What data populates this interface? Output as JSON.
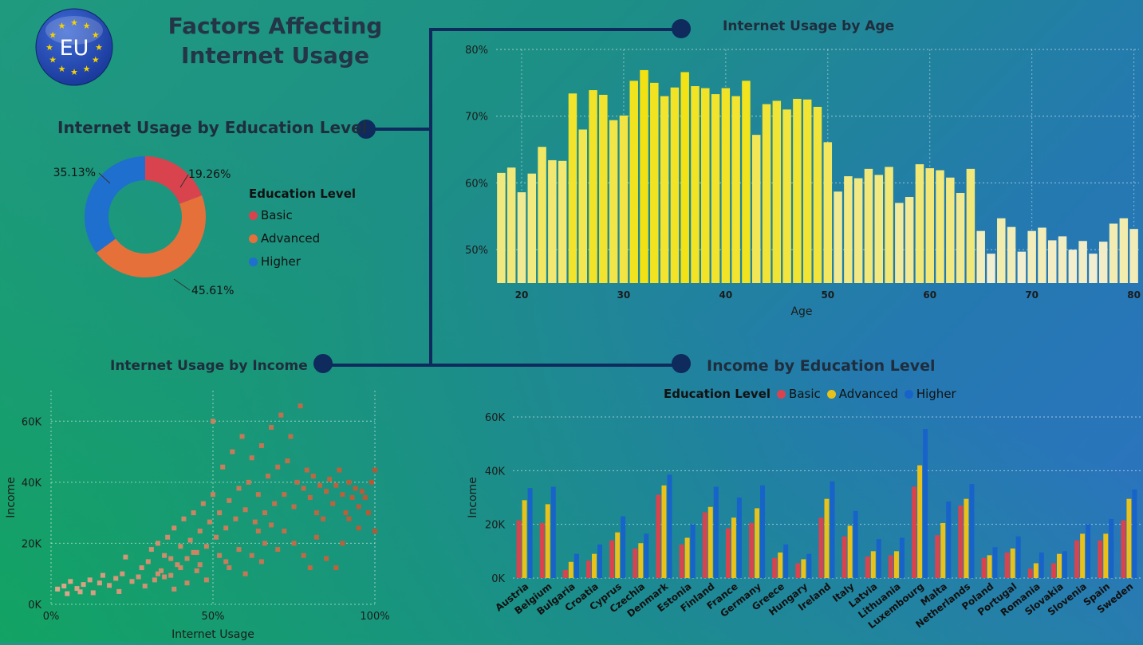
{
  "dashboard": {
    "title_line1": "Factors Affecting",
    "title_line2": "Internet Usage",
    "logo_text": "EU"
  },
  "colors": {
    "basic": "#d9434e",
    "advanced": "#e6703a",
    "higher": "#1f6fce",
    "bar_advanced": "#e8c11a",
    "bar_higher": "#1763c9",
    "connector": "#0f2a5c"
  },
  "chart_data": [
    {
      "id": "donut",
      "type": "pie",
      "title": "Internet Usage by Education Level",
      "legend_title": "Education Level",
      "legend_position": "right",
      "categories": [
        "Basic",
        "Advanced",
        "Higher"
      ],
      "values": [
        19.26,
        45.61,
        35.13
      ],
      "labels": [
        "19.26%",
        "45.61%",
        "35.13%"
      ]
    },
    {
      "id": "age",
      "type": "bar",
      "title": "Internet Usage by Age",
      "xlabel": "Age",
      "ylabel": "",
      "x": [
        18,
        19,
        20,
        21,
        22,
        23,
        24,
        25,
        26,
        27,
        28,
        29,
        30,
        31,
        32,
        33,
        34,
        35,
        36,
        37,
        38,
        39,
        40,
        41,
        42,
        43,
        44,
        45,
        46,
        47,
        48,
        49,
        50,
        51,
        52,
        53,
        54,
        55,
        56,
        57,
        58,
        59,
        60,
        61,
        62,
        63,
        64,
        65,
        66,
        67,
        68,
        69,
        70,
        71,
        72,
        73,
        74,
        75,
        76,
        77,
        78,
        79,
        80
      ],
      "values": [
        61.5,
        62.3,
        58.6,
        61.4,
        65.4,
        63.4,
        63.3,
        73.4,
        68.0,
        73.9,
        73.2,
        69.4,
        70.1,
        75.3,
        76.9,
        75.0,
        73.0,
        74.3,
        76.6,
        74.5,
        74.2,
        73.3,
        74.2,
        73.0,
        75.3,
        67.2,
        71.8,
        72.3,
        71.0,
        72.6,
        72.5,
        71.4,
        66.1,
        58.7,
        61.0,
        60.7,
        62.1,
        61.2,
        62.4,
        57.0,
        57.9,
        62.8,
        62.2,
        61.9,
        60.8,
        58.5,
        62.1,
        52.8,
        49.4,
        54.7,
        53.4,
        49.7,
        52.8,
        53.3,
        51.4,
        52.0,
        50.0,
        51.3,
        49.4,
        51.2,
        53.9,
        54.7,
        53.1
      ],
      "ylim": [
        45,
        80
      ],
      "yticks": [
        "50%",
        "60%",
        "70%",
        "80%"
      ],
      "xticks": [
        "20",
        "30",
        "40",
        "50",
        "60",
        "70",
        "80"
      ],
      "grid": true
    },
    {
      "id": "scatter",
      "type": "scatter",
      "title": "Internet Usage by Income",
      "xlabel": "Internet Usage",
      "ylabel": "Income",
      "xlim": [
        0,
        100
      ],
      "ylim": [
        0,
        70000
      ],
      "xticks": [
        "0%",
        "50%",
        "100%"
      ],
      "yticks": [
        "0K",
        "20K",
        "40K",
        "60K"
      ],
      "grid": true,
      "points": [
        [
          2,
          5000
        ],
        [
          4,
          6000
        ],
        [
          5,
          3500
        ],
        [
          6,
          7500
        ],
        [
          8,
          5200
        ],
        [
          9,
          4100
        ],
        [
          10,
          6500
        ],
        [
          12,
          8000
        ],
        [
          13,
          3800
        ],
        [
          15,
          7000
        ],
        [
          16,
          9500
        ],
        [
          18,
          6200
        ],
        [
          20,
          8500
        ],
        [
          21,
          4200
        ],
        [
          22,
          10000
        ],
        [
          23,
          15500
        ],
        [
          25,
          7500
        ],
        [
          27,
          9000
        ],
        [
          28,
          12000
        ],
        [
          29,
          6000
        ],
        [
          30,
          14000
        ],
        [
          31,
          18000
        ],
        [
          32,
          8000
        ],
        [
          33,
          20000
        ],
        [
          34,
          11000
        ],
        [
          35,
          16000
        ],
        [
          36,
          22000
        ],
        [
          37,
          9500
        ],
        [
          38,
          25000
        ],
        [
          39,
          13000
        ],
        [
          40,
          19000
        ],
        [
          41,
          28000
        ],
        [
          42,
          15000
        ],
        [
          43,
          21000
        ],
        [
          44,
          30000
        ],
        [
          45,
          17000
        ],
        [
          46,
          24000
        ],
        [
          47,
          33000
        ],
        [
          48,
          19000
        ],
        [
          49,
          27000
        ],
        [
          50,
          36000
        ],
        [
          50,
          60000
        ],
        [
          51,
          22000
        ],
        [
          52,
          30000
        ],
        [
          53,
          45000
        ],
        [
          54,
          25000
        ],
        [
          55,
          34000
        ],
        [
          56,
          50000
        ],
        [
          57,
          28000
        ],
        [
          58,
          38000
        ],
        [
          59,
          55000
        ],
        [
          60,
          31000
        ],
        [
          61,
          40000
        ],
        [
          62,
          48000
        ],
        [
          63,
          27000
        ],
        [
          64,
          36000
        ],
        [
          65,
          52000
        ],
        [
          66,
          30000
        ],
        [
          67,
          42000
        ],
        [
          68,
          58000
        ],
        [
          69,
          33000
        ],
        [
          70,
          45000
        ],
        [
          71,
          62000
        ],
        [
          72,
          36000
        ],
        [
          73,
          47000
        ],
        [
          74,
          55000
        ],
        [
          75,
          32000
        ],
        [
          76,
          40000
        ],
        [
          77,
          65000
        ],
        [
          78,
          38000
        ],
        [
          79,
          44000
        ],
        [
          80,
          35000
        ],
        [
          81,
          42000
        ],
        [
          82,
          30000
        ],
        [
          83,
          39000
        ],
        [
          84,
          28000
        ],
        [
          85,
          37000
        ],
        [
          86,
          41000
        ],
        [
          87,
          33000
        ],
        [
          88,
          39000
        ],
        [
          89,
          44000
        ],
        [
          90,
          36000
        ],
        [
          91,
          30000
        ],
        [
          92,
          40000
        ],
        [
          93,
          35000
        ],
        [
          94,
          38000
        ],
        [
          95,
          32000
        ],
        [
          96,
          37000
        ],
        [
          97,
          35000
        ],
        [
          98,
          30000
        ],
        [
          99,
          40000
        ],
        [
          100,
          44000
        ],
        [
          100,
          24000
        ],
        [
          85,
          15000
        ],
        [
          80,
          12000
        ],
        [
          75,
          20000
        ],
        [
          70,
          18000
        ],
        [
          65,
          14000
        ],
        [
          60,
          10000
        ],
        [
          55,
          12000
        ],
        [
          48,
          8000
        ],
        [
          45,
          11000
        ],
        [
          42,
          7000
        ],
        [
          38,
          5000
        ],
        [
          35,
          9000
        ],
        [
          90,
          20000
        ],
        [
          88,
          12000
        ],
        [
          82,
          22000
        ],
        [
          78,
          16000
        ],
        [
          72,
          24000
        ],
        [
          66,
          20000
        ],
        [
          62,
          16000
        ],
        [
          58,
          18000
        ],
        [
          54,
          14000
        ],
        [
          52,
          16000
        ],
        [
          46,
          13000
        ],
        [
          44,
          17000
        ],
        [
          40,
          12000
        ],
        [
          37,
          15000
        ],
        [
          33,
          10000
        ],
        [
          95,
          25000
        ],
        [
          92,
          28000
        ],
        [
          68,
          26000
        ],
        [
          64,
          24000
        ]
      ]
    },
    {
      "id": "income",
      "type": "bar",
      "title": "Income by Education Level",
      "legend_title": "Education Level",
      "legend_position": "top",
      "xlabel": "",
      "ylabel": "Income",
      "ylim": [
        0,
        60000
      ],
      "yticks": [
        "0K",
        "20K",
        "40K",
        "60K"
      ],
      "grid": true,
      "categories": [
        "Austria",
        "Belgium",
        "Bulgaria",
        "Croatia",
        "Cyprus",
        "Czechia",
        "Denmark",
        "Estonia",
        "Finland",
        "France",
        "Germany",
        "Greece",
        "Hungary",
        "Ireland",
        "Italy",
        "Latvia",
        "Lithuania",
        "Luxembourg",
        "Malta",
        "Netherlands",
        "Poland",
        "Portugal",
        "Romania",
        "Slovakia",
        "Slovenia",
        "Spain",
        "Sweden"
      ],
      "series": [
        {
          "name": "Basic",
          "values": [
            21500,
            20500,
            3000,
            6500,
            14000,
            11000,
            31000,
            12500,
            24500,
            18500,
            20500,
            7500,
            5500,
            22500,
            15500,
            8000,
            8500,
            34000,
            16000,
            27000,
            7500,
            9500,
            3500,
            5500,
            14000,
            14000,
            21500
          ]
        },
        {
          "name": "Advanced",
          "values": [
            29000,
            27500,
            6000,
            9000,
            17000,
            13000,
            34500,
            15000,
            26500,
            22500,
            26000,
            9500,
            7000,
            29500,
            19500,
            10000,
            10000,
            42000,
            20500,
            29500,
            8500,
            11000,
            5500,
            9000,
            16500,
            16500,
            29500
          ]
        },
        {
          "name": "Higher",
          "values": [
            33500,
            34000,
            9000,
            12500,
            23000,
            16500,
            38500,
            20000,
            34000,
            30000,
            34500,
            12500,
            9000,
            36000,
            25000,
            14500,
            15000,
            55500,
            28500,
            35000,
            11500,
            15500,
            9500,
            10000,
            20000,
            22000,
            33000
          ]
        }
      ]
    }
  ]
}
